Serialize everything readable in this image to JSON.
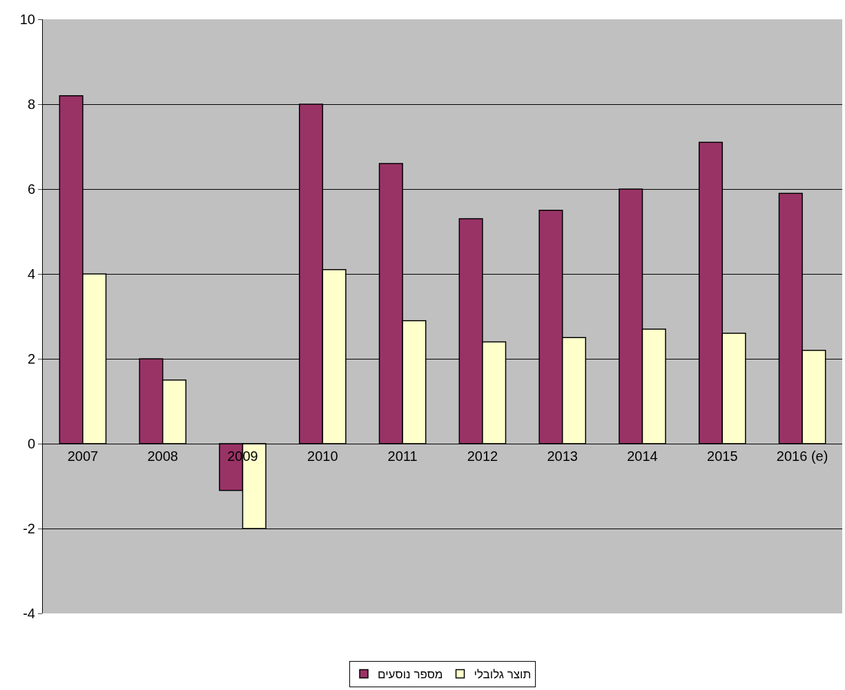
{
  "chart_data": {
    "type": "bar",
    "categories": [
      "2007",
      "2008",
      "2009",
      "2010",
      "2011",
      "2012",
      "2013",
      "2014",
      "2015",
      "2016 (e)"
    ],
    "series": [
      {
        "name": "מספר נוסעים",
        "color": "#993366",
        "values": [
          8.2,
          2.0,
          -1.1,
          8.0,
          6.6,
          5.3,
          5.5,
          6.0,
          7.1,
          5.9
        ]
      },
      {
        "name": "תוצר גלובלי",
        "color": "#ffffcc",
        "values": [
          4.0,
          1.5,
          -2.0,
          4.1,
          2.9,
          2.4,
          2.5,
          2.7,
          2.6,
          2.2
        ]
      }
    ],
    "ylim": [
      -4,
      10
    ],
    "yticks": [
      -4,
      -2,
      0,
      2,
      4,
      6,
      8,
      10
    ],
    "grid": "y",
    "legend": "bottom"
  }
}
